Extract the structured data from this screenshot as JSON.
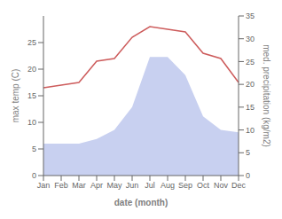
{
  "chart_data": {
    "type": "line",
    "categories": [
      "Jan",
      "Feb",
      "Mar",
      "Apr",
      "May",
      "Jun",
      "Jul",
      "Aug",
      "Sep",
      "Oct",
      "Nov",
      "Dec"
    ],
    "xlabel": "date (month)",
    "ylabel": "max temp (C)",
    "y2label": "med. precipitation (kg/m2)",
    "ylim": [
      0,
      30
    ],
    "yticks": [
      0,
      5,
      10,
      15,
      20,
      25
    ],
    "y2lim": [
      0,
      35
    ],
    "y2ticks": [
      0,
      5,
      10,
      15,
      20,
      25,
      30,
      35
    ],
    "grid": false,
    "series": [
      {
        "type": "area",
        "axis": "y2",
        "color": "#c8d0f0",
        "values": [
          7.0,
          7.0,
          7.0,
          8.0,
          10.0,
          15.0,
          26.0,
          26.0,
          22.0,
          13.0,
          10.0,
          9.5
        ]
      },
      {
        "type": "line",
        "color": "#cd5c5c",
        "values": [
          16.5,
          17.0,
          17.5,
          21.5,
          22.0,
          26.0,
          28.0,
          27.5,
          27.0,
          23.0,
          22.0,
          17.5
        ]
      }
    ]
  }
}
